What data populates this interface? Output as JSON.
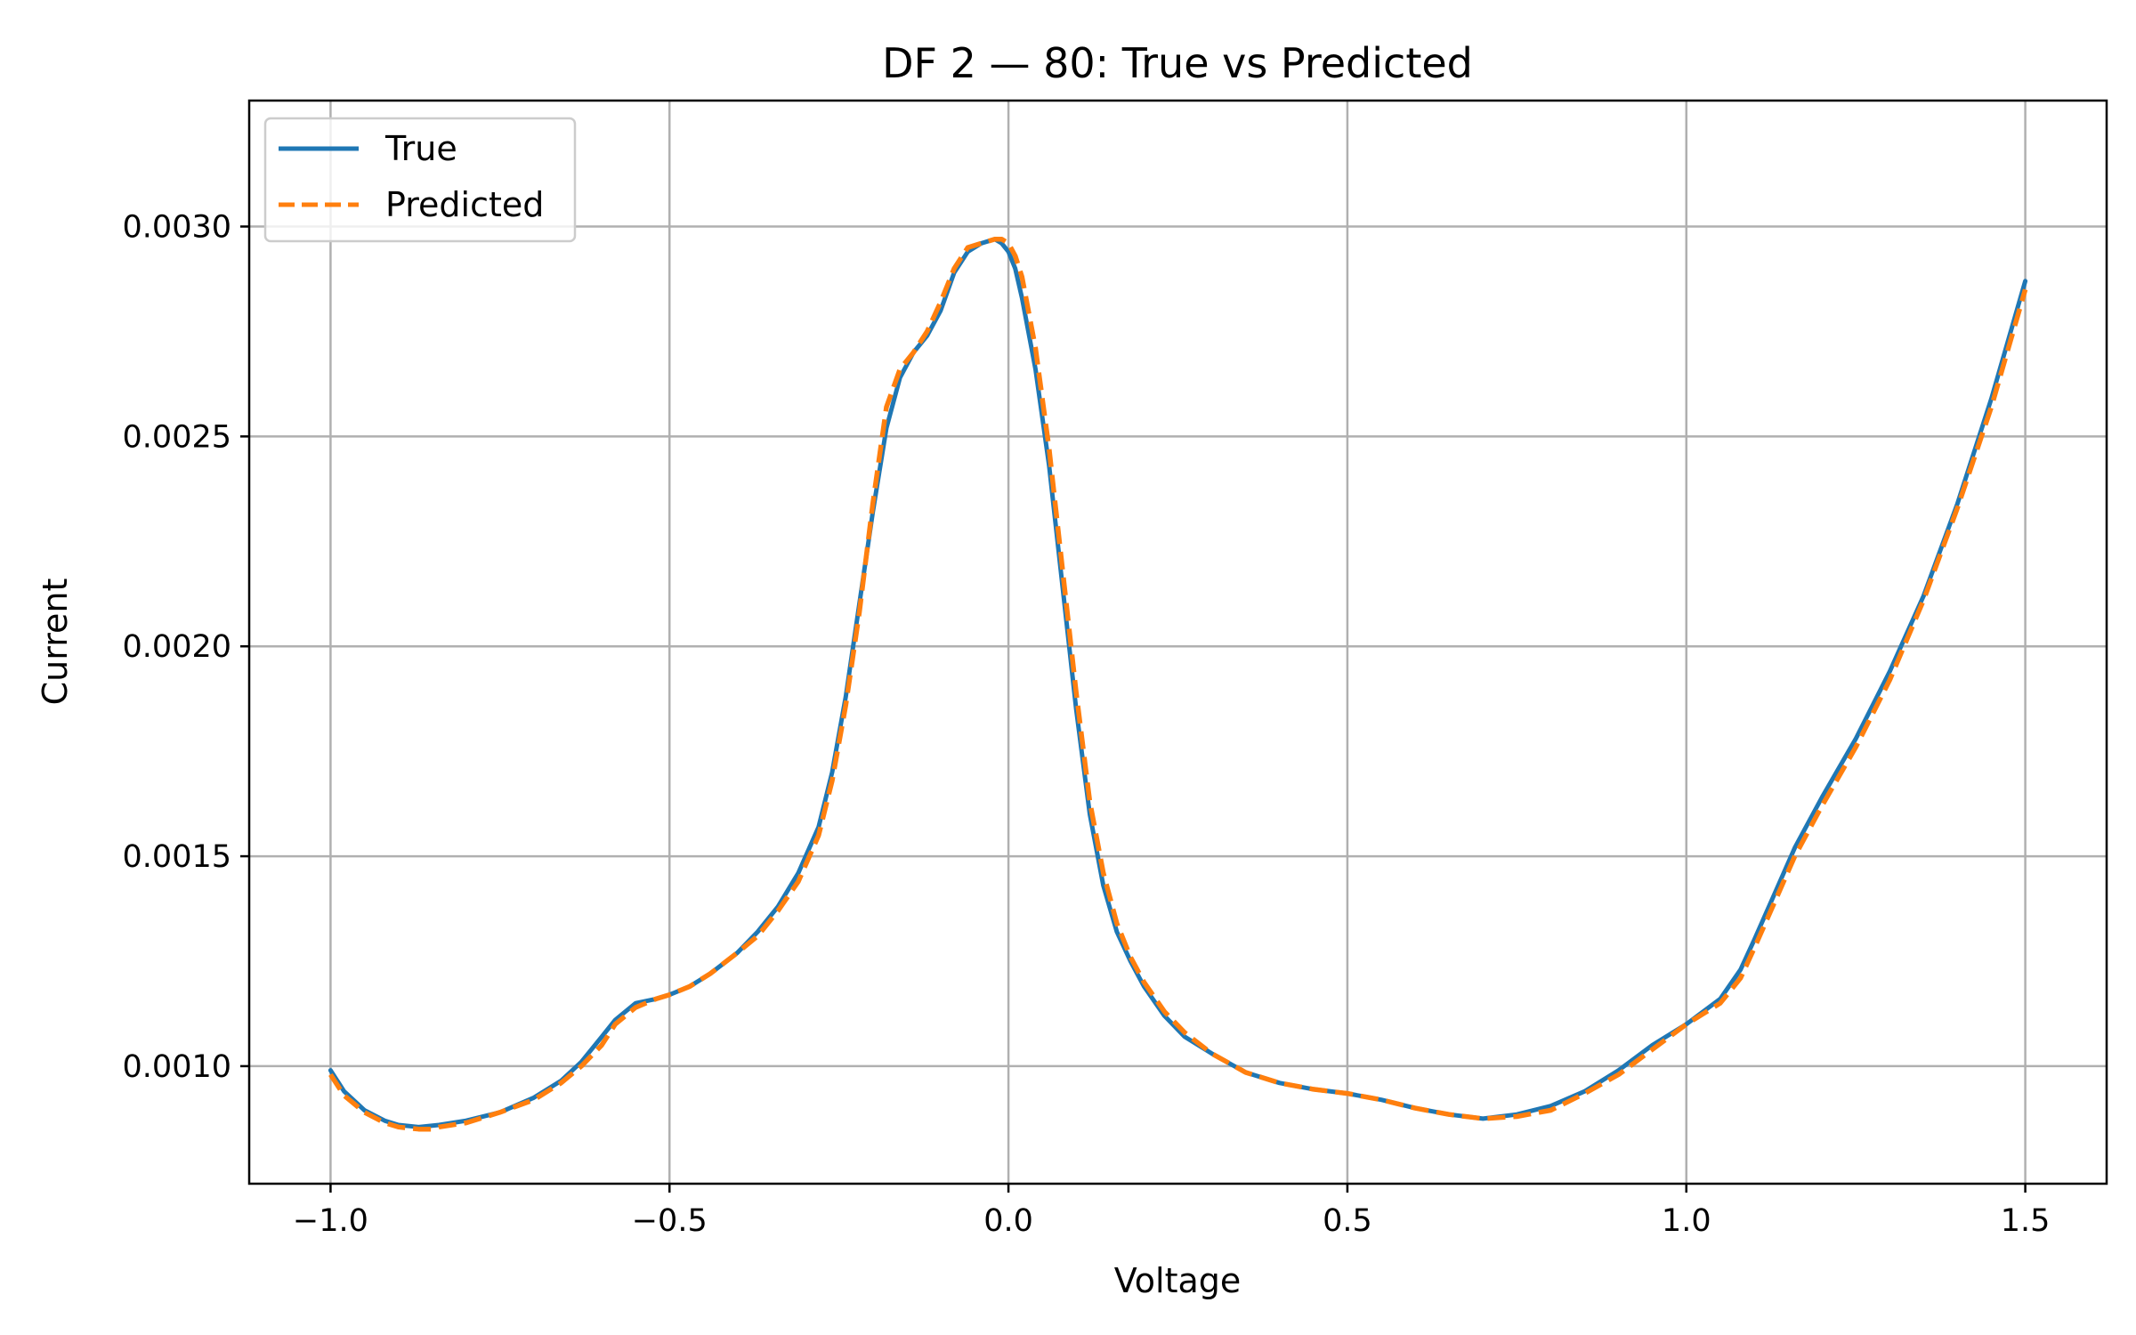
{
  "chart_data": {
    "type": "line",
    "title": "DF 2 — 80: True vs Predicted",
    "xlabel": "Voltage",
    "ylabel": "Current",
    "xlim": [
      -1.12,
      1.62
    ],
    "ylim": [
      0.00072,
      0.0033
    ],
    "xticks": [
      -1.0,
      -0.5,
      0.0,
      0.5,
      1.0,
      1.5
    ],
    "xtick_labels": [
      "−1.0",
      "−0.5",
      "0.0",
      "0.5",
      "1.0",
      "1.5"
    ],
    "yticks": [
      0.001,
      0.0015,
      0.002,
      0.0025,
      0.003
    ],
    "ytick_labels": [
      "0.0010",
      "0.0015",
      "0.0020",
      "0.0025",
      "0.0030"
    ],
    "grid": true,
    "legend_position": "top-left",
    "series": [
      {
        "name": "True",
        "color": "#1f77b4",
        "style": "solid",
        "x": [
          -1.0,
          -0.98,
          -0.95,
          -0.92,
          -0.9,
          -0.87,
          -0.84,
          -0.8,
          -0.75,
          -0.7,
          -0.66,
          -0.63,
          -0.6,
          -0.58,
          -0.55,
          -0.52,
          -0.5,
          -0.47,
          -0.44,
          -0.4,
          -0.37,
          -0.34,
          -0.31,
          -0.28,
          -0.26,
          -0.24,
          -0.22,
          -0.2,
          -0.18,
          -0.16,
          -0.14,
          -0.12,
          -0.1,
          -0.08,
          -0.06,
          -0.04,
          -0.02,
          -0.01,
          0.0,
          0.01,
          0.02,
          0.04,
          0.06,
          0.08,
          0.1,
          0.12,
          0.14,
          0.16,
          0.18,
          0.2,
          0.23,
          0.26,
          0.3,
          0.35,
          0.4,
          0.45,
          0.5,
          0.55,
          0.6,
          0.65,
          0.7,
          0.75,
          0.8,
          0.85,
          0.9,
          0.95,
          1.0,
          1.05,
          1.08,
          1.1,
          1.13,
          1.16,
          1.2,
          1.25,
          1.3,
          1.35,
          1.4,
          1.45,
          1.5
        ],
        "y": [
          0.00099,
          0.00094,
          0.000895,
          0.00087,
          0.00086,
          0.000855,
          0.00086,
          0.00087,
          0.00089,
          0.000925,
          0.000965,
          0.00101,
          0.00107,
          0.00111,
          0.00115,
          0.00116,
          0.00117,
          0.00119,
          0.00122,
          0.00127,
          0.00132,
          0.00138,
          0.00146,
          0.00157,
          0.0017,
          0.00188,
          0.0021,
          0.00232,
          0.00252,
          0.00264,
          0.0027,
          0.00274,
          0.0028,
          0.00289,
          0.00294,
          0.00296,
          0.00297,
          0.00296,
          0.00294,
          0.0029,
          0.00283,
          0.00266,
          0.00243,
          0.00214,
          0.00185,
          0.0016,
          0.00143,
          0.00132,
          0.00125,
          0.00119,
          0.00112,
          0.00107,
          0.00103,
          0.000985,
          0.00096,
          0.000945,
          0.000935,
          0.00092,
          0.0009,
          0.000885,
          0.000875,
          0.000885,
          0.000905,
          0.00094,
          0.00099,
          0.00105,
          0.0011,
          0.00116,
          0.00123,
          0.0013,
          0.00141,
          0.00152,
          0.00164,
          0.00178,
          0.00194,
          0.00212,
          0.00234,
          0.00259,
          0.00287
        ]
      },
      {
        "name": "Predicted",
        "color": "#ff7f0e",
        "style": "dashed",
        "x": [
          -1.0,
          -0.98,
          -0.95,
          -0.92,
          -0.9,
          -0.87,
          -0.85,
          -0.84,
          -0.8,
          -0.75,
          -0.7,
          -0.66,
          -0.63,
          -0.6,
          -0.58,
          -0.55,
          -0.52,
          -0.5,
          -0.47,
          -0.44,
          -0.4,
          -0.37,
          -0.34,
          -0.31,
          -0.28,
          -0.26,
          -0.24,
          -0.22,
          -0.2,
          -0.18,
          -0.16,
          -0.14,
          -0.12,
          -0.1,
          -0.08,
          -0.06,
          -0.04,
          -0.02,
          -0.01,
          0.0,
          0.01,
          0.02,
          0.04,
          0.06,
          0.08,
          0.1,
          0.12,
          0.14,
          0.16,
          0.18,
          0.2,
          0.23,
          0.26,
          0.3,
          0.35,
          0.4,
          0.45,
          0.5,
          0.55,
          0.6,
          0.65,
          0.7,
          0.75,
          0.8,
          0.85,
          0.9,
          0.95,
          1.0,
          1.05,
          1.08,
          1.1,
          1.13,
          1.16,
          1.2,
          1.25,
          1.3,
          1.35,
          1.4,
          1.45,
          1.5
        ],
        "y": [
          0.00098,
          0.00093,
          0.00089,
          0.000865,
          0.000855,
          0.00085,
          0.00085,
          0.000855,
          0.000865,
          0.00089,
          0.00092,
          0.00096,
          0.001,
          0.00105,
          0.0011,
          0.00114,
          0.00116,
          0.00117,
          0.00119,
          0.00122,
          0.00127,
          0.00131,
          0.00137,
          0.00144,
          0.00155,
          0.00168,
          0.00186,
          0.00208,
          0.00234,
          0.00257,
          0.00266,
          0.0027,
          0.00275,
          0.00282,
          0.0029,
          0.00295,
          0.00296,
          0.00297,
          0.00297,
          0.00296,
          0.00293,
          0.00288,
          0.00271,
          0.00247,
          0.00218,
          0.00189,
          0.00163,
          0.00146,
          0.00134,
          0.00126,
          0.0012,
          0.00113,
          0.00108,
          0.00103,
          0.000985,
          0.00096,
          0.000945,
          0.000935,
          0.00092,
          0.0009,
          0.000885,
          0.000875,
          0.00088,
          0.000895,
          0.000935,
          0.00098,
          0.00104,
          0.0011,
          0.00115,
          0.00121,
          0.00128,
          0.00139,
          0.0015,
          0.00162,
          0.00176,
          0.00192,
          0.00211,
          0.00233,
          0.00257,
          0.00285
        ]
      }
    ]
  }
}
